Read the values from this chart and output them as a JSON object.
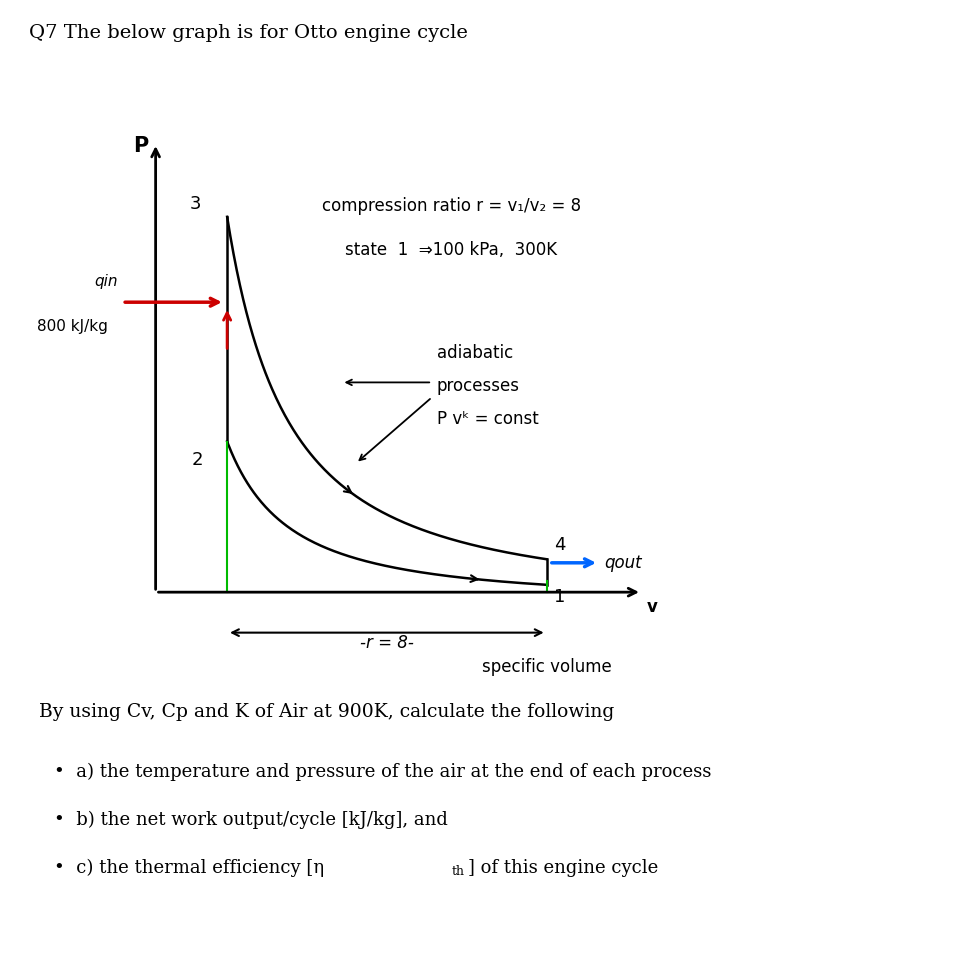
{
  "title": "Q7 The below graph is for Otto engine cycle",
  "title_fontsize": 14,
  "background_color": "#ffffff",
  "compression_ratio_text": "compression ratio r = v₁/v₂ = 8",
  "state_text": "state  1  ⇒100 kPa,  300K",
  "qin_label": "qin",
  "qin_value": "800 kJ/kg",
  "adiabatic_line1": "adiabatic",
  "adiabatic_line2": "processes",
  "adiabatic_line3": "P vᵏ = const",
  "qout_label": "qout",
  "r8_label": "-r = 8-",
  "v_label": "v",
  "specific_volume_label": "specific volume",
  "P_label": "P",
  "state_labels": [
    "1",
    "2",
    "3",
    "4"
  ],
  "bottom_text": "By using Cv, Cp and K of Air at 900K, calculate the following",
  "bullet_a": "a) the temperature and pressure of the air at the end of each process",
  "bullet_b": "b) the net work output/cycle [kJ/kg], and",
  "bullet_c_prefix": "c) the thermal efficiency [",
  "bullet_c_eta": "η",
  "bullet_c_sub": "th",
  "bullet_c_suffix": "] of this engine cycle",
  "k": 1.4,
  "curve_color": "#000000",
  "vertical_line_color": "#00bb00",
  "qin_arrow_color": "#cc0000",
  "qout_arrow_color": "#0066ff",
  "axis_color": "#000000",
  "v1_d": 8.5,
  "v2_d": 1.8,
  "p1_d": 0.5,
  "p3_d": 10.5
}
